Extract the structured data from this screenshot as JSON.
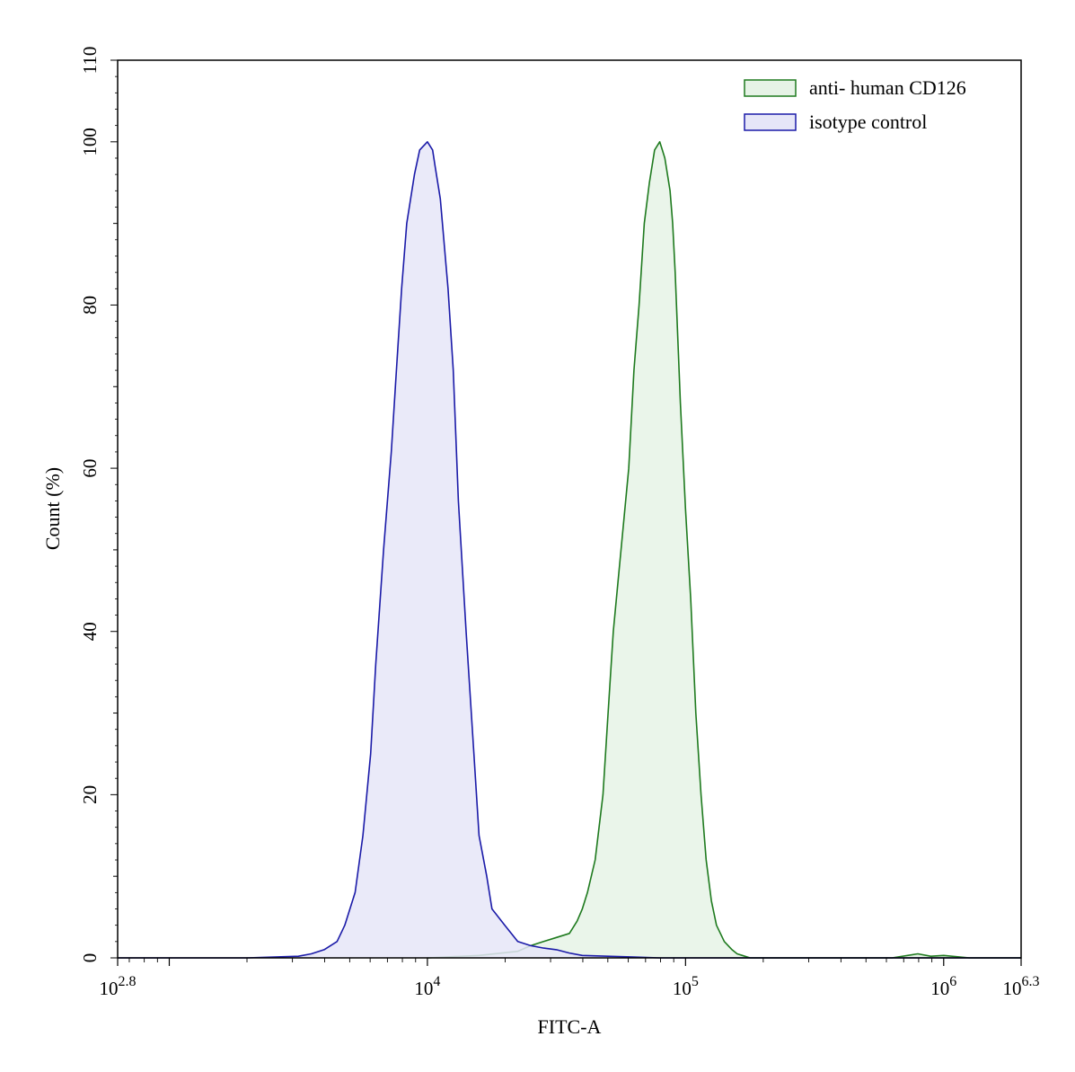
{
  "chart_data": {
    "type": "area",
    "title": "",
    "xlabel": "FITC-A",
    "ylabel": "Count  (%)",
    "x_scale": "log10",
    "xlim": [
      2.8,
      6.3
    ],
    "ylim": [
      0,
      110
    ],
    "x_tick_labels": [
      {
        "log": 2.8,
        "base": "10",
        "exp": "2.8"
      },
      {
        "log": 4,
        "base": "10",
        "exp": "4"
      },
      {
        "log": 5,
        "base": "10",
        "exp": "5"
      },
      {
        "log": 6,
        "base": "10",
        "exp": "6"
      },
      {
        "log": 6.3,
        "base": "10",
        "exp": "6.3"
      }
    ],
    "y_ticks": [
      0,
      20,
      40,
      60,
      80,
      100,
      110
    ],
    "grid": false,
    "legend_position": "top-right",
    "series": [
      {
        "name": "anti- human CD126",
        "color": "#1e7a1e",
        "fill": "#e6f3e6",
        "x_log": [
          4.0,
          4.2,
          4.35,
          4.4,
          4.45,
          4.5,
          4.55,
          4.58,
          4.6,
          4.62,
          4.65,
          4.68,
          4.7,
          4.72,
          4.75,
          4.78,
          4.8,
          4.82,
          4.84,
          4.86,
          4.88,
          4.9,
          4.91,
          4.92,
          4.93,
          4.94,
          4.95,
          4.96,
          4.97,
          4.98,
          5.0,
          5.02,
          5.04,
          5.06,
          5.08,
          5.1,
          5.12,
          5.15,
          5.18,
          5.2,
          5.22,
          5.25,
          5.28,
          5.3,
          5.32,
          5.35,
          5.4,
          5.45,
          5.5,
          5.6,
          5.8,
          5.9,
          5.95,
          6.0,
          6.1,
          6.3
        ],
        "y": [
          0,
          0.3,
          0.8,
          1.5,
          2,
          2.5,
          3,
          4.5,
          6,
          8,
          12,
          20,
          30,
          40,
          50,
          60,
          72,
          80,
          90,
          95,
          99,
          100,
          99,
          98,
          96,
          94,
          90,
          84,
          76,
          68,
          55,
          44,
          30,
          20,
          12,
          7,
          4,
          2,
          1,
          0.5,
          0.3,
          0,
          0,
          0,
          0,
          0,
          0,
          0,
          0,
          0,
          0,
          0.5,
          0.2,
          0.3,
          0,
          0
        ]
      },
      {
        "name": "isotype control",
        "color": "#1a1aa8",
        "fill": "#e6e6f8",
        "x_log": [
          2.8,
          3.3,
          3.5,
          3.55,
          3.6,
          3.65,
          3.68,
          3.72,
          3.75,
          3.78,
          3.8,
          3.83,
          3.86,
          3.88,
          3.9,
          3.92,
          3.95,
          3.97,
          4.0,
          4.02,
          4.03,
          4.05,
          4.08,
          4.1,
          4.12,
          4.15,
          4.18,
          4.2,
          4.23,
          4.25,
          4.3,
          4.35,
          4.4,
          4.45,
          4.5,
          4.55,
          4.6,
          4.7,
          4.8,
          4.9,
          5.0,
          6.3
        ],
        "y": [
          0,
          0,
          0.2,
          0.5,
          1,
          2,
          4,
          8,
          15,
          25,
          36,
          50,
          62,
          72,
          82,
          90,
          96,
          99,
          100,
          99,
          97,
          93,
          82,
          72,
          56,
          40,
          25,
          15,
          10,
          6,
          4,
          2,
          1.5,
          1.2,
          1,
          0.6,
          0.3,
          0.2,
          0.1,
          0,
          0,
          0
        ]
      }
    ]
  }
}
